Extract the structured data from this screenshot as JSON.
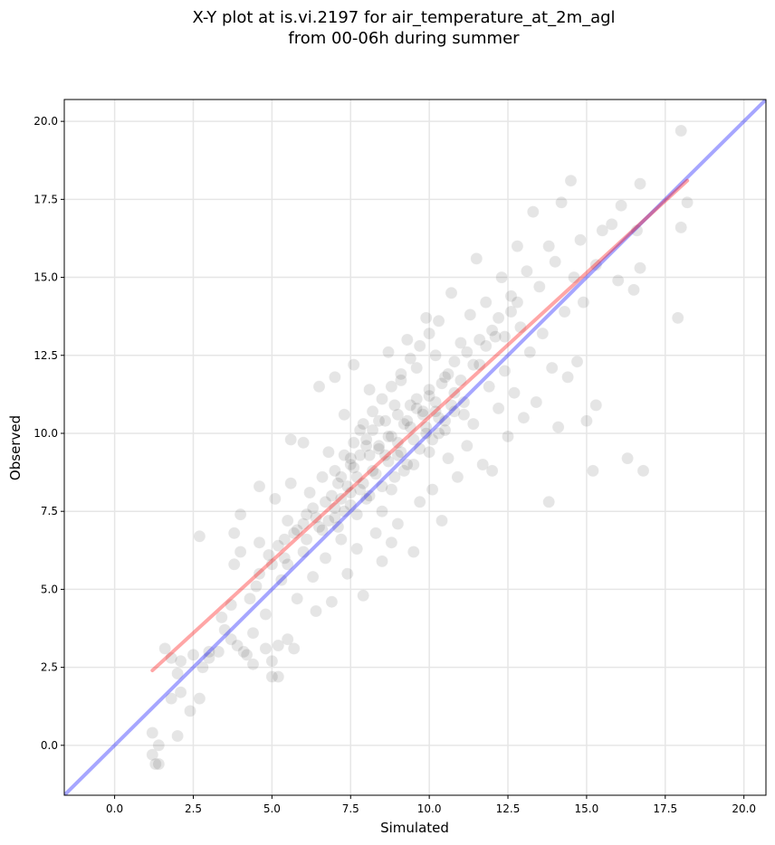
{
  "chart_data": {
    "type": "scatter",
    "title_line1": "X-Y plot at is.vi.2197 for air_temperature_at_2m_agl",
    "title_line2": "from 00-06h during summer",
    "xlabel": "Simulated",
    "ylabel": "Observed",
    "xlim": [
      -1.6,
      20.7
    ],
    "ylim": [
      -1.6,
      20.7
    ],
    "xticks": [
      0.0,
      2.5,
      5.0,
      7.5,
      10.0,
      12.5,
      15.0,
      17.5,
      20.0
    ],
    "yticks": [
      0.0,
      2.5,
      5.0,
      7.5,
      10.0,
      12.5,
      15.0,
      17.5,
      20.0
    ],
    "xtick_labels": [
      "0.0",
      "2.5",
      "5.0",
      "7.5",
      "10.0",
      "12.5",
      "15.0",
      "17.5",
      "20.0"
    ],
    "ytick_labels": [
      "0.0",
      "2.5",
      "5.0",
      "7.5",
      "10.0",
      "12.5",
      "15.0",
      "17.5",
      "20.0"
    ],
    "grid": true,
    "point_color": "#000000",
    "point_alpha": 0.1,
    "identity_line": {
      "color": "#0000ff",
      "alpha": 0.35,
      "from": [
        -1.6,
        -1.6
      ],
      "to": [
        20.7,
        20.7
      ]
    },
    "fit_line": {
      "color": "#ff0000",
      "alpha": 0.35,
      "from": [
        1.2,
        2.4
      ],
      "to": [
        18.2,
        18.1
      ]
    },
    "points": [
      [
        1.2,
        0.4
      ],
      [
        1.2,
        -0.3
      ],
      [
        1.3,
        -0.6
      ],
      [
        1.4,
        0.0
      ],
      [
        1.4,
        -0.6
      ],
      [
        1.6,
        3.1
      ],
      [
        1.8,
        2.8
      ],
      [
        1.8,
        1.5
      ],
      [
        2.0,
        2.3
      ],
      [
        2.0,
        0.3
      ],
      [
        2.1,
        1.7
      ],
      [
        2.1,
        2.7
      ],
      [
        2.4,
        1.1
      ],
      [
        2.5,
        2.9
      ],
      [
        2.7,
        1.5
      ],
      [
        2.7,
        6.7
      ],
      [
        2.8,
        2.5
      ],
      [
        3.0,
        3.0
      ],
      [
        3.0,
        2.8
      ],
      [
        3.3,
        3.0
      ],
      [
        3.4,
        4.1
      ],
      [
        3.5,
        3.7
      ],
      [
        3.7,
        3.4
      ],
      [
        3.7,
        4.5
      ],
      [
        3.8,
        5.8
      ],
      [
        3.8,
        6.8
      ],
      [
        3.9,
        3.2
      ],
      [
        4.0,
        6.2
      ],
      [
        4.0,
        7.4
      ],
      [
        4.1,
        3.0
      ],
      [
        4.2,
        2.9
      ],
      [
        4.3,
        4.7
      ],
      [
        4.4,
        2.6
      ],
      [
        4.4,
        3.6
      ],
      [
        4.5,
        5.1
      ],
      [
        4.6,
        6.5
      ],
      [
        4.6,
        8.3
      ],
      [
        4.8,
        3.1
      ],
      [
        4.8,
        4.2
      ],
      [
        5.0,
        2.7
      ],
      [
        5.0,
        5.8
      ],
      [
        5.0,
        2.2
      ],
      [
        5.1,
        7.9
      ],
      [
        5.2,
        2.2
      ],
      [
        5.2,
        3.2
      ],
      [
        5.3,
        5.3
      ],
      [
        5.4,
        6.6
      ],
      [
        5.5,
        3.4
      ],
      [
        5.5,
        7.2
      ],
      [
        5.6,
        8.4
      ],
      [
        5.6,
        9.8
      ],
      [
        5.7,
        3.1
      ],
      [
        5.8,
        4.7
      ],
      [
        6.0,
        6.2
      ],
      [
        6.0,
        9.7
      ],
      [
        6.1,
        7.4
      ],
      [
        6.2,
        8.1
      ],
      [
        6.3,
        5.4
      ],
      [
        6.4,
        4.3
      ],
      [
        6.5,
        7.0
      ],
      [
        6.5,
        11.5
      ],
      [
        6.6,
        8.6
      ],
      [
        6.7,
        6.0
      ],
      [
        6.8,
        9.4
      ],
      [
        6.9,
        4.6
      ],
      [
        7.0,
        11.8
      ],
      [
        7.0,
        7.3
      ],
      [
        7.1,
        8.4
      ],
      [
        7.2,
        6.6
      ],
      [
        7.3,
        10.6
      ],
      [
        7.4,
        5.5
      ],
      [
        7.5,
        7.7
      ],
      [
        7.5,
        9.2
      ],
      [
        7.6,
        12.2
      ],
      [
        7.7,
        8.6
      ],
      [
        7.7,
        6.3
      ],
      [
        7.8,
        10.1
      ],
      [
        7.9,
        4.8
      ],
      [
        8.0,
        7.9
      ],
      [
        8.0,
        9.6
      ],
      [
        8.1,
        11.4
      ],
      [
        8.2,
        8.8
      ],
      [
        8.3,
        6.8
      ],
      [
        8.4,
        10.4
      ],
      [
        8.5,
        5.9
      ],
      [
        8.5,
        7.5
      ],
      [
        8.6,
        9.3
      ],
      [
        8.7,
        12.6
      ],
      [
        8.8,
        8.2
      ],
      [
        8.8,
        6.5
      ],
      [
        8.9,
        10.9
      ],
      [
        9.0,
        9.7
      ],
      [
        9.0,
        7.1
      ],
      [
        9.1,
        11.7
      ],
      [
        9.2,
        8.8
      ],
      [
        9.3,
        13.0
      ],
      [
        9.4,
        10.2
      ],
      [
        9.5,
        6.2
      ],
      [
        9.5,
        9.0
      ],
      [
        9.6,
        12.1
      ],
      [
        9.7,
        7.8
      ],
      [
        9.8,
        10.6
      ],
      [
        9.9,
        13.7
      ],
      [
        10.0,
        9.4
      ],
      [
        10.0,
        11.2
      ],
      [
        10.1,
        8.2
      ],
      [
        10.2,
        12.5
      ],
      [
        10.3,
        10.0
      ],
      [
        10.4,
        7.2
      ],
      [
        10.5,
        11.8
      ],
      [
        10.6,
        9.2
      ],
      [
        10.7,
        14.5
      ],
      [
        10.8,
        10.7
      ],
      [
        10.9,
        8.6
      ],
      [
        11.0,
        12.9
      ],
      [
        11.1,
        11.0
      ],
      [
        11.2,
        9.6
      ],
      [
        11.3,
        13.8
      ],
      [
        11.4,
        10.3
      ],
      [
        11.5,
        15.6
      ],
      [
        11.6,
        12.2
      ],
      [
        11.7,
        9.0
      ],
      [
        11.8,
        14.2
      ],
      [
        11.9,
        11.5
      ],
      [
        12.0,
        8.8
      ],
      [
        12.1,
        13.1
      ],
      [
        12.2,
        10.8
      ],
      [
        12.3,
        15.0
      ],
      [
        12.4,
        12.0
      ],
      [
        12.5,
        9.9
      ],
      [
        12.6,
        14.4
      ],
      [
        12.7,
        11.3
      ],
      [
        12.8,
        16.0
      ],
      [
        12.9,
        13.4
      ],
      [
        13.0,
        10.5
      ],
      [
        13.1,
        15.2
      ],
      [
        13.2,
        12.6
      ],
      [
        13.3,
        17.1
      ],
      [
        13.4,
        11.0
      ],
      [
        13.5,
        14.7
      ],
      [
        13.6,
        13.2
      ],
      [
        13.8,
        7.8
      ],
      [
        13.8,
        16.0
      ],
      [
        13.9,
        12.1
      ],
      [
        14.0,
        15.5
      ],
      [
        14.1,
        10.2
      ],
      [
        14.2,
        17.4
      ],
      [
        14.3,
        13.9
      ],
      [
        14.4,
        11.8
      ],
      [
        14.5,
        18.1
      ],
      [
        14.6,
        15.0
      ],
      [
        14.7,
        12.3
      ],
      [
        14.8,
        16.2
      ],
      [
        14.9,
        14.2
      ],
      [
        15.0,
        10.4
      ],
      [
        15.2,
        8.8
      ],
      [
        15.3,
        15.4
      ],
      [
        15.3,
        10.9
      ],
      [
        15.5,
        16.5
      ],
      [
        15.8,
        16.7
      ],
      [
        16.0,
        14.9
      ],
      [
        16.1,
        17.3
      ],
      [
        16.3,
        9.2
      ],
      [
        16.5,
        14.6
      ],
      [
        16.6,
        16.5
      ],
      [
        16.7,
        15.3
      ],
      [
        16.7,
        18.0
      ],
      [
        16.8,
        8.8
      ],
      [
        17.9,
        13.7
      ],
      [
        18.0,
        19.7
      ],
      [
        18.0,
        16.6
      ],
      [
        18.2,
        17.4
      ],
      [
        7.0,
        7.6
      ],
      [
        7.2,
        7.9
      ],
      [
        7.4,
        8.3
      ],
      [
        7.6,
        8.9
      ],
      [
        7.8,
        9.3
      ],
      [
        8.0,
        9.8
      ],
      [
        8.2,
        10.1
      ],
      [
        8.4,
        9.5
      ],
      [
        8.6,
        10.4
      ],
      [
        8.8,
        9.9
      ],
      [
        9.0,
        10.6
      ],
      [
        9.2,
        10.3
      ],
      [
        9.4,
        10.9
      ],
      [
        9.6,
        11.1
      ],
      [
        9.8,
        10.7
      ],
      [
        10.0,
        11.4
      ],
      [
        10.2,
        11.0
      ],
      [
        10.4,
        11.6
      ],
      [
        10.6,
        11.9
      ],
      [
        10.8,
        12.3
      ],
      [
        11.0,
        11.7
      ],
      [
        11.2,
        12.6
      ],
      [
        11.4,
        12.2
      ],
      [
        11.6,
        13.0
      ],
      [
        11.8,
        12.8
      ],
      [
        12.0,
        13.3
      ],
      [
        12.2,
        13.7
      ],
      [
        12.4,
        13.1
      ],
      [
        12.6,
        13.9
      ],
      [
        12.8,
        14.2
      ],
      [
        6.8,
        7.2
      ],
      [
        7.1,
        7.0
      ],
      [
        7.3,
        7.5
      ],
      [
        7.5,
        8.1
      ],
      [
        7.7,
        7.4
      ],
      [
        7.9,
        8.4
      ],
      [
        8.1,
        8.0
      ],
      [
        8.3,
        8.7
      ],
      [
        8.5,
        8.3
      ],
      [
        8.7,
        9.1
      ],
      [
        8.9,
        8.6
      ],
      [
        9.1,
        9.4
      ],
      [
        9.3,
        9.0
      ],
      [
        9.5,
        9.8
      ],
      [
        9.7,
        9.5
      ],
      [
        9.9,
        10.2
      ],
      [
        10.1,
        9.8
      ],
      [
        10.3,
        10.5
      ],
      [
        10.5,
        10.1
      ],
      [
        10.7,
        10.9
      ],
      [
        5.4,
        6.0
      ],
      [
        5.7,
        6.8
      ],
      [
        6.0,
        7.1
      ],
      [
        6.3,
        7.6
      ],
      [
        6.6,
        6.9
      ],
      [
        6.9,
        8.0
      ],
      [
        7.2,
        8.6
      ],
      [
        7.5,
        9.0
      ],
      [
        7.8,
        8.2
      ],
      [
        8.1,
        9.3
      ],
      [
        8.4,
        9.6
      ],
      [
        8.7,
        9.9
      ],
      [
        9.0,
        9.3
      ],
      [
        9.3,
        10.4
      ],
      [
        9.6,
        10.8
      ],
      [
        9.9,
        10.0
      ],
      [
        10.2,
        10.7
      ],
      [
        10.5,
        10.4
      ],
      [
        10.8,
        11.3
      ],
      [
        11.1,
        10.6
      ],
      [
        4.6,
        5.5
      ],
      [
        4.9,
        6.1
      ],
      [
        5.2,
        6.4
      ],
      [
        5.5,
        5.8
      ],
      [
        5.8,
        6.9
      ],
      [
        6.1,
        6.6
      ],
      [
        6.4,
        7.3
      ],
      [
        6.7,
        7.8
      ],
      [
        7.0,
        8.8
      ],
      [
        7.3,
        9.3
      ],
      [
        7.6,
        9.7
      ],
      [
        7.9,
        10.3
      ],
      [
        8.2,
        10.7
      ],
      [
        8.5,
        11.1
      ],
      [
        8.8,
        11.5
      ],
      [
        9.1,
        11.9
      ],
      [
        9.4,
        12.4
      ],
      [
        9.7,
        12.8
      ],
      [
        10.0,
        13.2
      ],
      [
        10.3,
        13.6
      ]
    ]
  }
}
